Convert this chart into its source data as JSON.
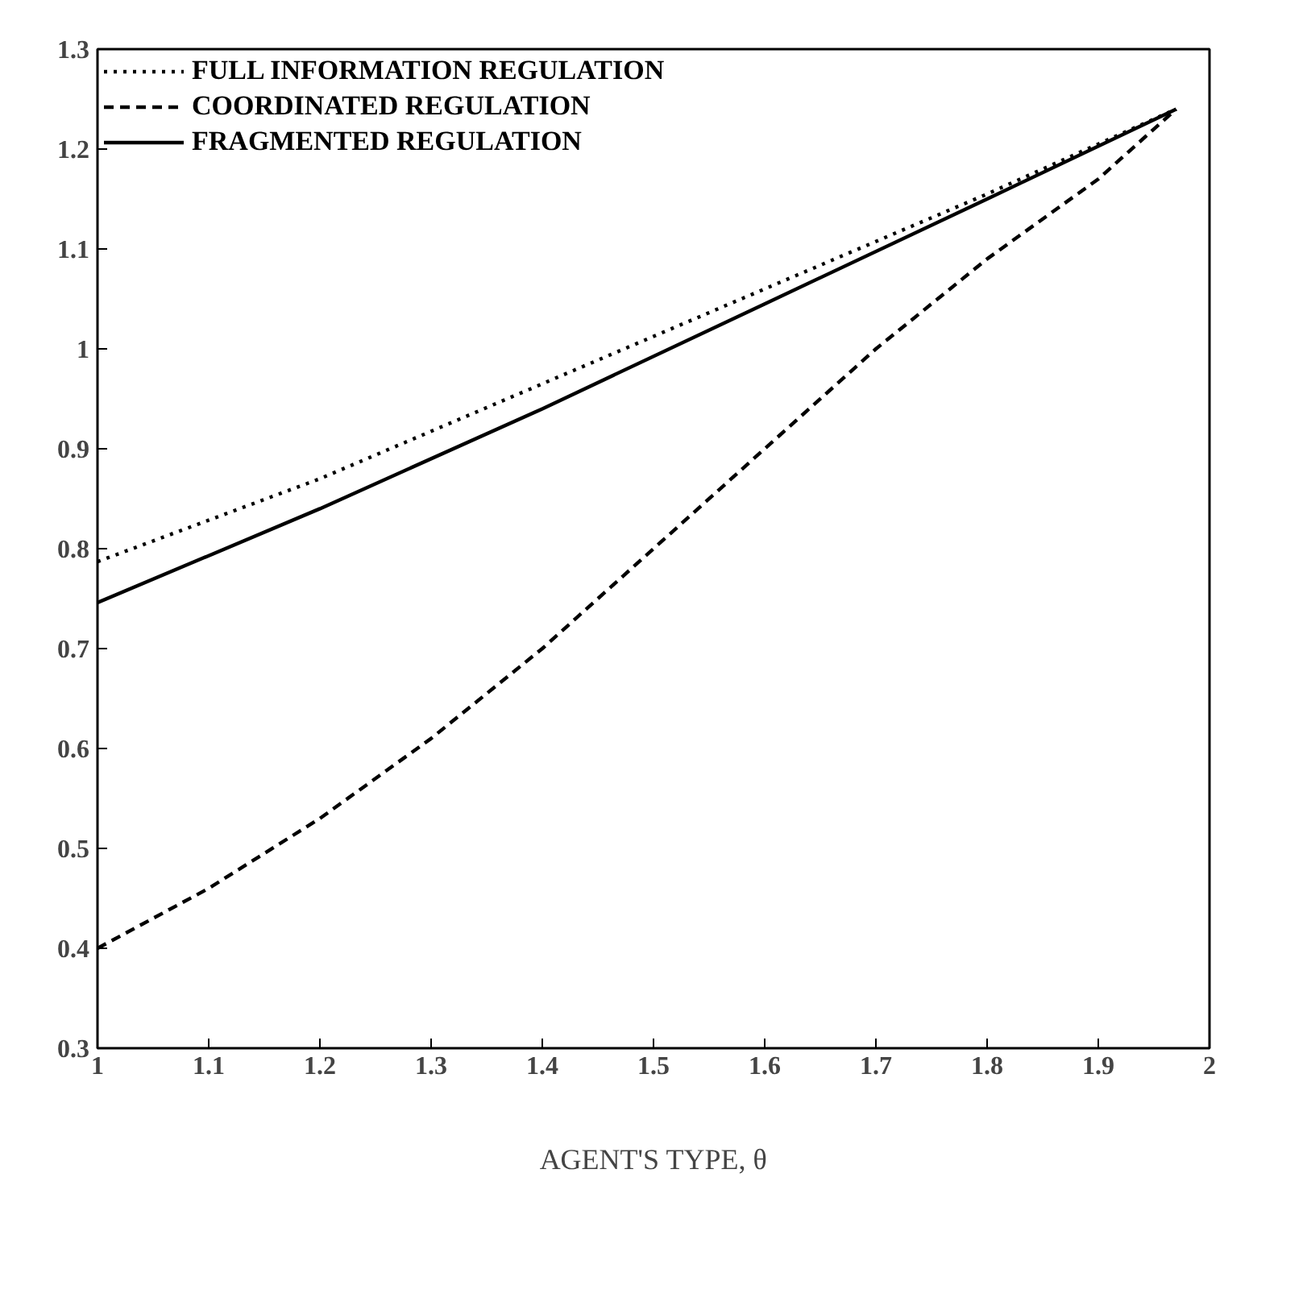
{
  "chart_data": {
    "type": "line",
    "xlabel": "AGENT'S TYPE, θ",
    "legend": "top left",
    "xlim": [
      1,
      2
    ],
    "ylim": [
      0.3,
      1.3
    ],
    "xticks": [
      1,
      1.1,
      1.2,
      1.3,
      1.4,
      1.5,
      1.6,
      1.7,
      1.8,
      1.9,
      2
    ],
    "yticks": [
      0.3,
      0.4,
      0.5,
      0.6,
      0.7,
      0.8,
      0.9,
      1,
      1.1,
      1.2,
      1.3
    ],
    "grid": false,
    "series": [
      {
        "name": "FULL INFORMATION REGULATION",
        "color": "#000000",
        "line_style": "dotted",
        "x": [
          1,
          1.2,
          1.4,
          1.6,
          1.8,
          1.97
        ],
        "values": [
          0.787,
          0.87,
          0.965,
          1.06,
          1.155,
          1.24
        ]
      },
      {
        "name": "COORDINATED REGULATION",
        "color": "#000000",
        "line_style": "dashed",
        "x": [
          1,
          1.1,
          1.2,
          1.3,
          1.4,
          1.5,
          1.6,
          1.7,
          1.8,
          1.9,
          1.97
        ],
        "values": [
          0.4,
          0.46,
          0.53,
          0.61,
          0.7,
          0.8,
          0.9,
          1.0,
          1.09,
          1.17,
          1.24
        ]
      },
      {
        "name": "FRAGMENTED REGULATION",
        "color": "#000000",
        "line_style": "solid",
        "x": [
          1,
          1.2,
          1.4,
          1.6,
          1.8,
          1.97
        ],
        "values": [
          0.746,
          0.84,
          0.94,
          1.045,
          1.15,
          1.24
        ]
      }
    ]
  }
}
